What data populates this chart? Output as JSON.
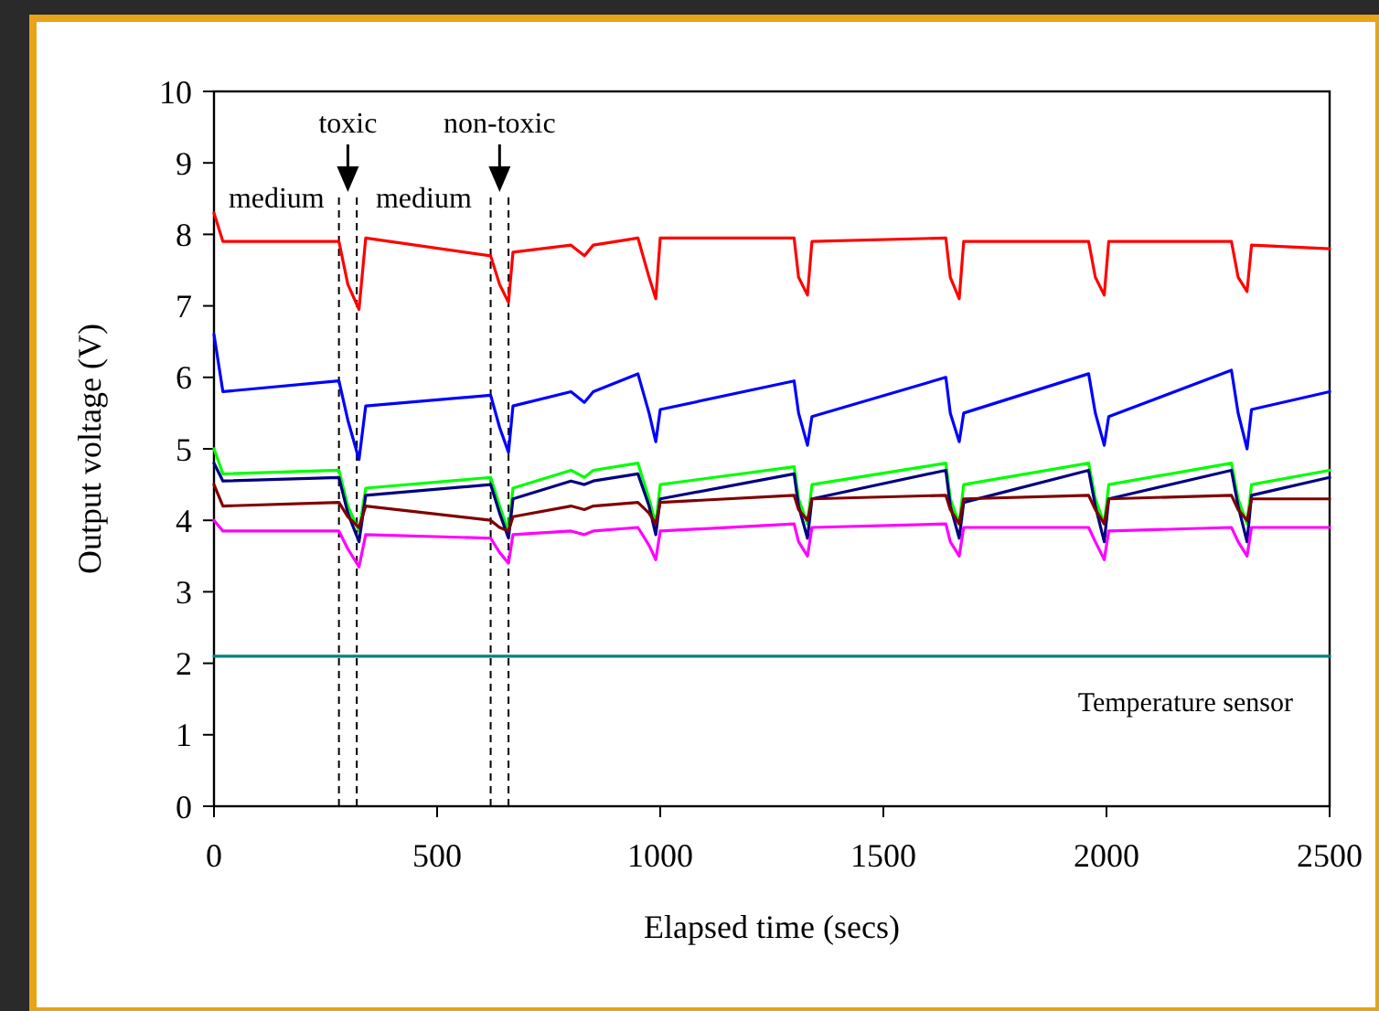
{
  "chart_data": {
    "type": "line",
    "xlabel": "Elapsed time (secs)",
    "ylabel": "Output voltage (V)",
    "xlim": [
      0,
      2500
    ],
    "xticks": [
      0,
      500,
      1000,
      1500,
      2000,
      2500
    ],
    "ylim": [
      0,
      10
    ],
    "yticks": [
      0,
      1,
      2,
      3,
      4,
      5,
      6,
      7,
      8,
      9,
      10
    ],
    "grid": false,
    "marker": "none",
    "line_style": "solid",
    "x": [
      0,
      20,
      280,
      300,
      325,
      340,
      620,
      640,
      660,
      670,
      800,
      830,
      850,
      950,
      975,
      990,
      1000,
      1300,
      1310,
      1330,
      1340,
      1640,
      1650,
      1670,
      1680,
      1960,
      1975,
      1995,
      2005,
      2280,
      2295,
      2315,
      2325,
      2500
    ],
    "series": [
      {
        "color": "#ff0000",
        "values": [
          8.3,
          7.9,
          7.9,
          7.3,
          6.95,
          7.95,
          7.7,
          7.3,
          7.05,
          7.75,
          7.85,
          7.7,
          7.85,
          7.95,
          7.4,
          7.1,
          7.95,
          7.95,
          7.4,
          7.15,
          7.9,
          7.95,
          7.4,
          7.1,
          7.9,
          7.9,
          7.4,
          7.15,
          7.9,
          7.9,
          7.4,
          7.2,
          7.85,
          7.8
        ]
      },
      {
        "color": "#0000ff",
        "values": [
          6.6,
          5.8,
          5.95,
          5.4,
          4.85,
          5.6,
          5.75,
          5.3,
          4.95,
          5.6,
          5.8,
          5.65,
          5.8,
          6.05,
          5.5,
          5.1,
          5.55,
          5.95,
          5.5,
          5.05,
          5.45,
          6.0,
          5.5,
          5.1,
          5.5,
          6.05,
          5.5,
          5.05,
          5.45,
          6.1,
          5.5,
          5.0,
          5.55,
          5.8
        ]
      },
      {
        "color": "#00ff00",
        "values": [
          5.0,
          4.65,
          4.7,
          4.2,
          3.85,
          4.45,
          4.6,
          4.2,
          3.85,
          4.45,
          4.7,
          4.6,
          4.7,
          4.8,
          4.3,
          3.95,
          4.5,
          4.75,
          4.3,
          3.95,
          4.5,
          4.8,
          4.3,
          3.95,
          4.5,
          4.8,
          4.3,
          3.95,
          4.5,
          4.8,
          4.3,
          3.95,
          4.5,
          4.7
        ]
      },
      {
        "color": "#000080",
        "values": [
          4.8,
          4.55,
          4.6,
          4.1,
          3.7,
          4.35,
          4.5,
          4.1,
          3.75,
          4.3,
          4.55,
          4.5,
          4.55,
          4.65,
          4.2,
          3.8,
          4.3,
          4.65,
          4.2,
          3.75,
          4.3,
          4.7,
          4.2,
          3.75,
          4.25,
          4.7,
          4.2,
          3.7,
          4.3,
          4.7,
          4.2,
          3.7,
          4.35,
          4.6
        ]
      },
      {
        "color": "#800000",
        "values": [
          4.5,
          4.2,
          4.25,
          4.05,
          3.9,
          4.2,
          4.0,
          3.9,
          3.85,
          4.05,
          4.2,
          4.15,
          4.2,
          4.25,
          4.1,
          3.95,
          4.25,
          4.35,
          4.15,
          4.0,
          4.3,
          4.35,
          4.15,
          3.95,
          4.3,
          4.35,
          4.15,
          3.95,
          4.3,
          4.35,
          4.15,
          4.0,
          4.3,
          4.3
        ]
      },
      {
        "color": "#ff00ff",
        "values": [
          4.0,
          3.85,
          3.85,
          3.6,
          3.35,
          3.8,
          3.75,
          3.55,
          3.4,
          3.8,
          3.85,
          3.8,
          3.85,
          3.9,
          3.65,
          3.45,
          3.85,
          3.95,
          3.7,
          3.5,
          3.9,
          3.95,
          3.7,
          3.5,
          3.9,
          3.9,
          3.7,
          3.45,
          3.85,
          3.9,
          3.7,
          3.5,
          3.9,
          3.9
        ]
      },
      {
        "name": "Temperature sensor",
        "color": "#008080",
        "x": [
          0,
          2500
        ],
        "values": [
          2.1,
          2.1
        ]
      }
    ],
    "ref_lines": [
      {
        "axis": "x",
        "value": 280,
        "color": "#000000",
        "line_style": "dashed"
      },
      {
        "axis": "x",
        "value": 320,
        "color": "#000000",
        "line_style": "dashed"
      },
      {
        "axis": "x",
        "value": 620,
        "color": "#000000",
        "line_style": "dashed"
      },
      {
        "axis": "x",
        "value": 660,
        "color": "#000000",
        "line_style": "dashed"
      }
    ],
    "annotations": [
      "toxic",
      "non-toxic",
      "medium",
      "medium"
    ]
  }
}
